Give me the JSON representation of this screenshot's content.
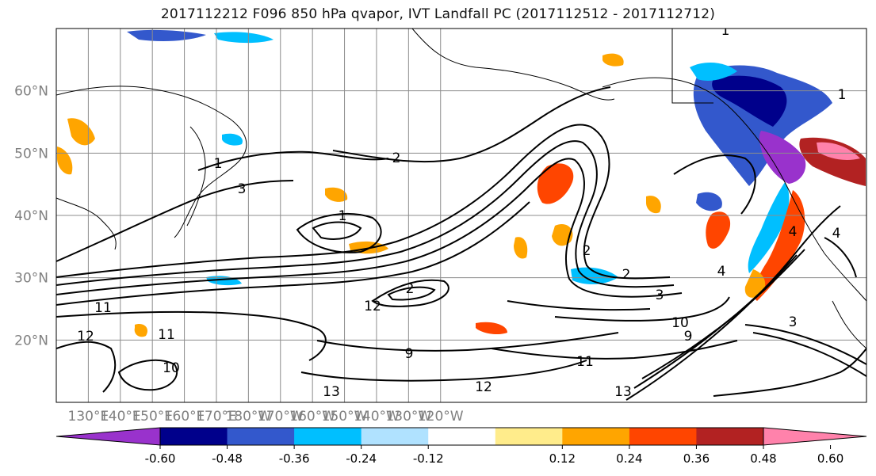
{
  "title": "2017112212 F096 850 hPa qvapor, IVT Landfall PC (2017112512 - 2017112712)",
  "map": {
    "lon_range": [
      120,
      -107
    ],
    "lat_range": [
      10,
      70
    ],
    "lat_labels": [
      "20°N",
      "30°N",
      "40°N",
      "50°N",
      "60°N"
    ],
    "lat_values": [
      20,
      30,
      40,
      50,
      60
    ],
    "lon_labels": [
      "130°E",
      "140°E",
      "150°E",
      "160°E",
      "170°E",
      "180°W",
      "170°W",
      "160°W",
      "150°W",
      "140°W",
      "130°W",
      "120°W"
    ],
    "lon_values": [
      130,
      140,
      150,
      160,
      170,
      180,
      190,
      200,
      210,
      220,
      230,
      240
    ],
    "grid": true,
    "contour_labels": [
      "1",
      "1",
      "1",
      "1",
      "2",
      "2",
      "2",
      "2",
      "3",
      "3",
      "3",
      "4",
      "4",
      "4",
      "9",
      "9",
      "10",
      "10",
      "11",
      "11",
      "11",
      "12",
      "12",
      "12",
      "13",
      "13"
    ]
  },
  "colorbar": {
    "ticks": [
      "-0.60",
      "-0.48",
      "-0.36",
      "-0.24",
      "-0.12",
      "0.12",
      "0.24",
      "0.36",
      "0.48",
      "0.60"
    ],
    "colors": [
      "#9932cc",
      "#00008b",
      "#3358cc",
      "#00bfff",
      "#b0e2ff",
      "#ffffff",
      "#ffec8b",
      "#ffa500",
      "#ff4500",
      "#b22222",
      "#ff82ab"
    ],
    "extend": "both"
  }
}
